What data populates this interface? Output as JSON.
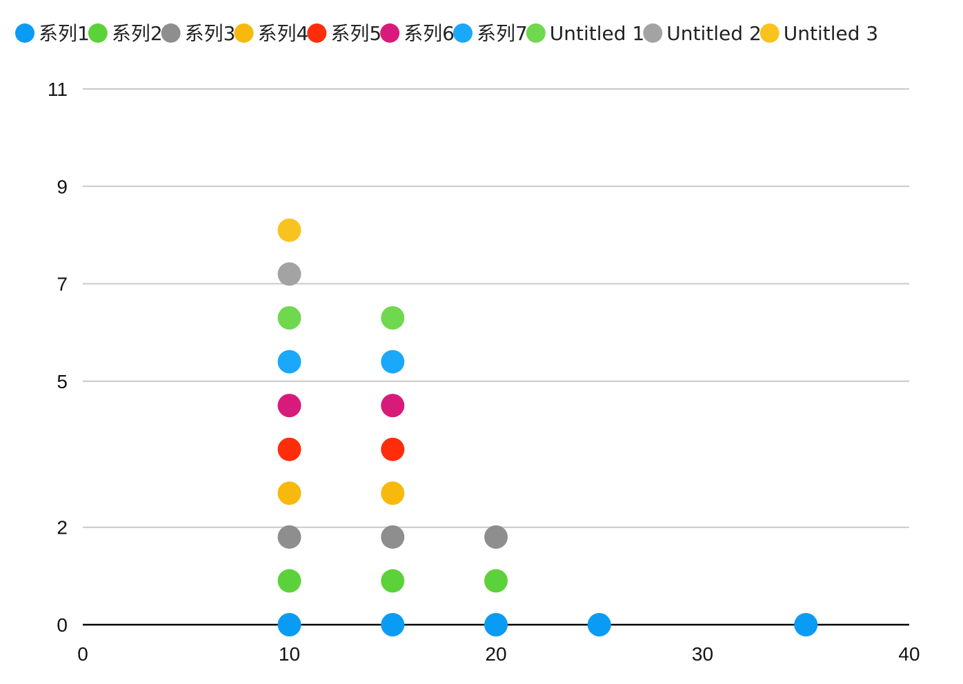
{
  "chart_data": {
    "type": "scatter",
    "title": "",
    "xlabel": "",
    "ylabel": "",
    "xlim": [
      0,
      40
    ],
    "ylim": [
      0,
      11
    ],
    "x_ticks": [
      0,
      10,
      20,
      30,
      40
    ],
    "y_ticks": [
      0,
      2,
      5,
      7,
      9,
      11
    ],
    "x_tick_labels": [
      "0",
      "10",
      "20",
      "30",
      "40"
    ],
    "y_tick_labels": [
      "0",
      "2",
      "5",
      "7",
      "9",
      "11"
    ],
    "grid": "horizontal",
    "legend": "top",
    "series": [
      {
        "name": "系列1",
        "color": "#0A9BF5",
        "points": [
          [
            10,
            0
          ],
          [
            15,
            0
          ],
          [
            20,
            0
          ],
          [
            25,
            0
          ],
          [
            35,
            0
          ]
        ]
      },
      {
        "name": "系列2",
        "color": "#5CD23A",
        "points": [
          [
            10,
            0.9
          ],
          [
            15,
            0.9
          ],
          [
            20,
            0.9
          ]
        ]
      },
      {
        "name": "系列3",
        "color": "#8E8E8E",
        "points": [
          [
            10,
            1.8
          ],
          [
            15,
            1.8
          ],
          [
            20,
            1.8
          ]
        ]
      },
      {
        "name": "系列4",
        "color": "#F7B90D",
        "points": [
          [
            10,
            2.7
          ],
          [
            15,
            2.7
          ]
        ]
      },
      {
        "name": "系列5",
        "color": "#FF2D0A",
        "points": [
          [
            10,
            3.6
          ],
          [
            15,
            3.6
          ]
        ]
      },
      {
        "name": "系列6",
        "color": "#D81B7A",
        "points": [
          [
            10,
            4.5
          ],
          [
            15,
            4.5
          ]
        ]
      },
      {
        "name": "系列7",
        "color": "#1AA8FA",
        "points": [
          [
            10,
            5.4
          ],
          [
            15,
            5.4
          ]
        ]
      },
      {
        "name": "Untitled 1",
        "color": "#6FD84F",
        "points": [
          [
            10,
            6.3
          ],
          [
            15,
            6.3
          ]
        ]
      },
      {
        "name": "Untitled 2",
        "color": "#A3A3A3",
        "points": [
          [
            10,
            7.2
          ]
        ]
      },
      {
        "name": "Untitled 3",
        "color": "#F9C31F",
        "points": [
          [
            10,
            8.1
          ]
        ]
      }
    ]
  }
}
